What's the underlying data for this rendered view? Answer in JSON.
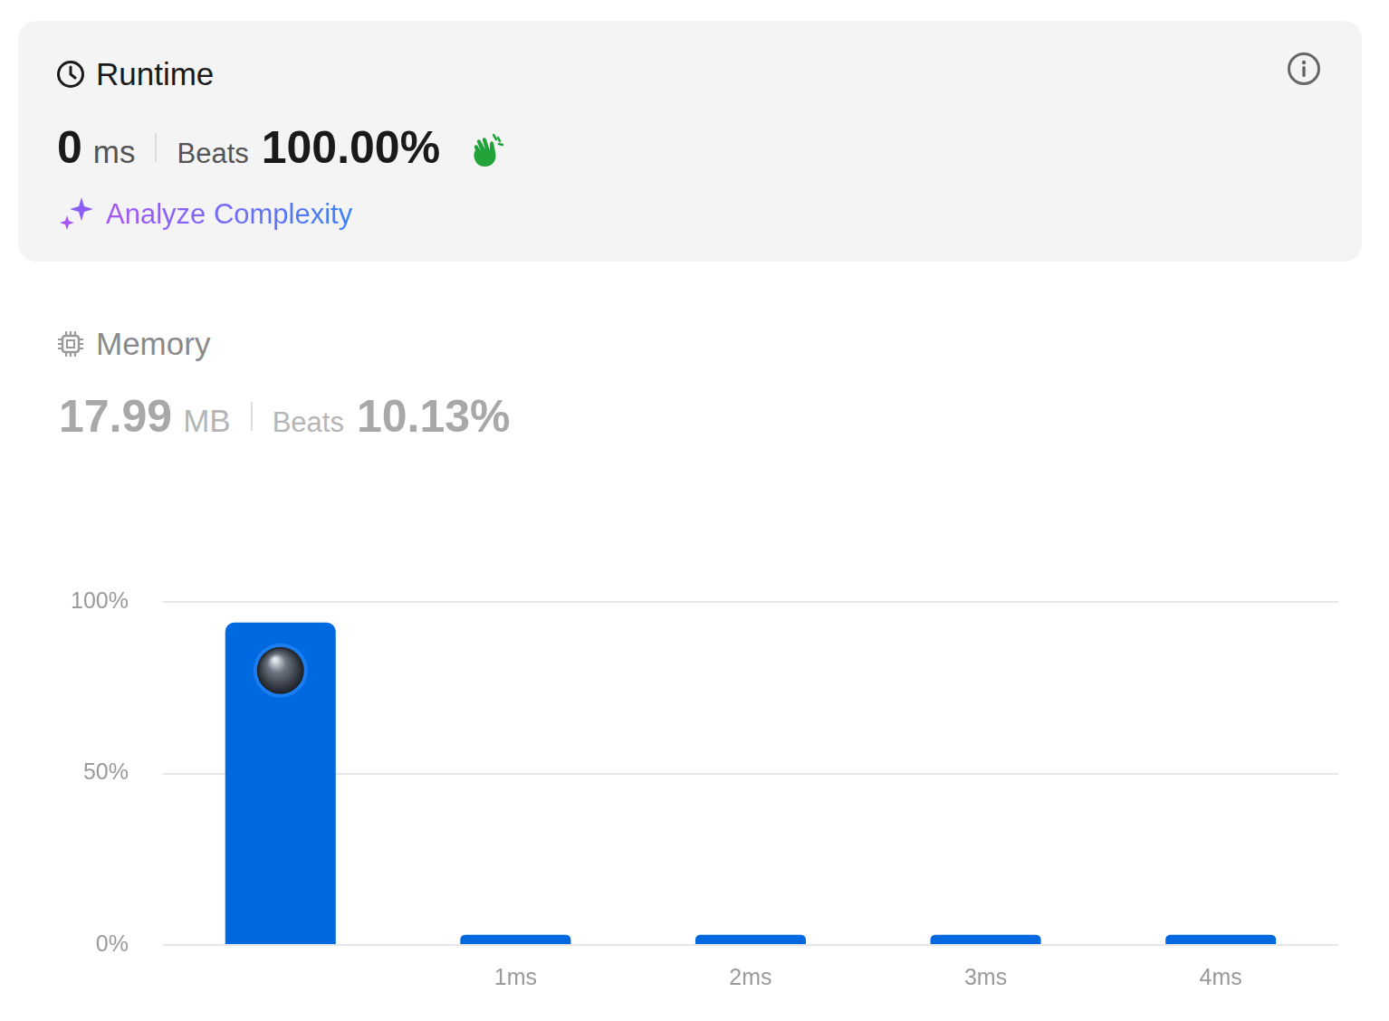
{
  "runtime": {
    "title": "Runtime",
    "value": 0,
    "unit": "ms",
    "beats_label": "Beats",
    "beats": "100.00%",
    "link": "Analyze Complexity"
  },
  "memory": {
    "title": "Memory",
    "value": 17.99,
    "unit": "MB",
    "beats_label": "Beats",
    "beats": "10.13%"
  },
  "chart_data": {
    "type": "bar",
    "categories": [
      null,
      "1ms",
      "2ms",
      "3ms",
      "4ms"
    ],
    "values": [
      94,
      3,
      3,
      3,
      3
    ],
    "color": "#0069e0",
    "ylim": [
      0,
      100
    ],
    "yticks": [
      {
        "value": 0,
        "label": "0%"
      },
      {
        "value": 50,
        "label": "50%"
      },
      {
        "value": 100,
        "label": "100%"
      }
    ],
    "grid": true
  }
}
